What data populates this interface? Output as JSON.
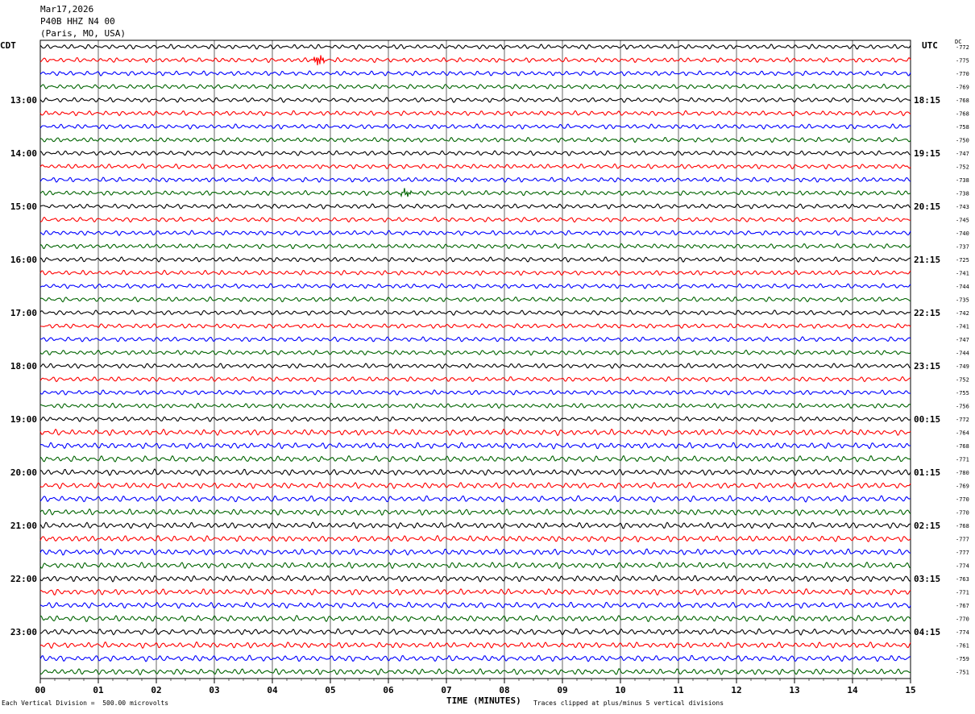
{
  "header": {
    "date": "Mar17,2026",
    "station": "P40B HHZ N4 00",
    "location": "(Paris, MO, USA)"
  },
  "labels": {
    "left_zone": "CDT",
    "right_zone": "UTC",
    "dc": "DC",
    "xlabel": "TIME (MINUTES)",
    "scale_note": "Each Vertical Division =  500.00 microvolts",
    "clip_note": "Traces clipped at plus/minus 5 vertical divisions"
  },
  "colors": {
    "trace_cycle": [
      "#000000",
      "#ff0000",
      "#0000ff",
      "#006400"
    ],
    "grid": "#000000"
  },
  "chart_data": {
    "type": "line",
    "trace_count": 48,
    "minutes_per_trace": 15,
    "xlim": [
      0,
      15
    ],
    "x_ticks": [
      "00",
      "01",
      "02",
      "03",
      "04",
      "05",
      "06",
      "07",
      "08",
      "09",
      "10",
      "11",
      "12",
      "13",
      "14",
      "15"
    ],
    "left_hour_labels": [
      {
        "trace": 4,
        "label": "13:00"
      },
      {
        "trace": 8,
        "label": "14:00"
      },
      {
        "trace": 12,
        "label": "15:00"
      },
      {
        "trace": 16,
        "label": "16:00"
      },
      {
        "trace": 20,
        "label": "17:00"
      },
      {
        "trace": 24,
        "label": "18:00"
      },
      {
        "trace": 28,
        "label": "19:00"
      },
      {
        "trace": 32,
        "label": "20:00"
      },
      {
        "trace": 36,
        "label": "21:00"
      },
      {
        "trace": 40,
        "label": "22:00"
      },
      {
        "trace": 44,
        "label": "23:00"
      }
    ],
    "right_hour_labels": [
      {
        "trace": 4,
        "label": "18:15"
      },
      {
        "trace": 8,
        "label": "19:15"
      },
      {
        "trace": 12,
        "label": "20:15"
      },
      {
        "trace": 16,
        "label": "21:15"
      },
      {
        "trace": 20,
        "label": "22:15"
      },
      {
        "trace": 24,
        "label": "23:15"
      },
      {
        "trace": 28,
        "label": "00:15"
      },
      {
        "trace": 32,
        "label": "01:15"
      },
      {
        "trace": 36,
        "label": "02:15"
      },
      {
        "trace": 40,
        "label": "03:15"
      },
      {
        "trace": 44,
        "label": "04:15"
      }
    ],
    "dc_offsets": [
      "-772",
      "-775",
      "-770",
      "-769",
      "-768",
      "-768",
      "-758",
      "-750",
      "-747",
      "-752",
      "-738",
      "-738",
      "-743",
      "-745",
      "-740",
      "-737",
      "-725",
      "-741",
      "-744",
      "-735",
      "-742",
      "-741",
      "-747",
      "-744",
      "-749",
      "-752",
      "-755",
      "-756",
      "-772",
      "-764",
      "-768",
      "-771",
      "-780",
      "-769",
      "-770",
      "-770",
      "-768",
      "-777",
      "-777",
      "-774",
      "-763",
      "-771",
      "-767",
      "-770",
      "-774",
      "-761",
      "-759",
      "-751"
    ],
    "events": [
      {
        "trace": 1,
        "minute": 4.8,
        "note_amp": 2.2
      },
      {
        "trace": 11,
        "minute": 6.3,
        "note_amp": 1.4
      }
    ]
  }
}
